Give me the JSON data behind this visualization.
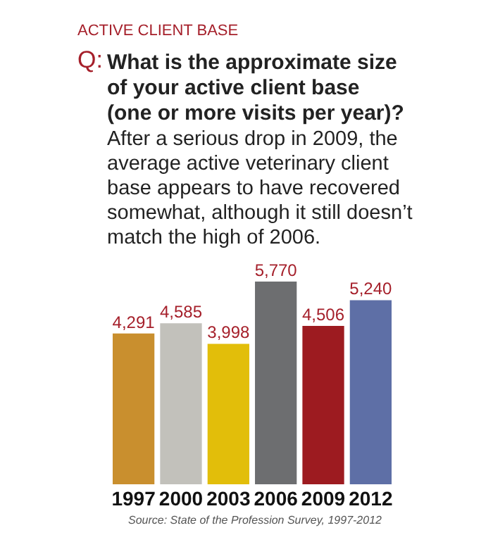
{
  "chart_data": {
    "type": "bar",
    "title": "ACTIVE CLIENT BASE",
    "subtitle": "Q: What is the approximate size of your active client base (one or more visits per year)?",
    "annotations": [
      "After a serious drop in 2009, the average active veterinary client base appears to have recovered somewhat, although it still doesn’t match the high of 2006.",
      "Source: State of the Profession Survey, 1997-2012"
    ],
    "categories": [
      "1997",
      "2000",
      "2003",
      "2006",
      "2009",
      "2012"
    ],
    "values": [
      4291,
      4585,
      3998,
      5770,
      4506,
      5240
    ],
    "colors": [
      "#c98f2e",
      "#c2c1bb",
      "#e2be0a",
      "#6d6e70",
      "#9d1b20",
      "#5e6fa6"
    ],
    "value_labels": [
      "4,291",
      "4,585",
      "3,998",
      "5,770",
      "4,506",
      "5,240"
    ]
  }
}
